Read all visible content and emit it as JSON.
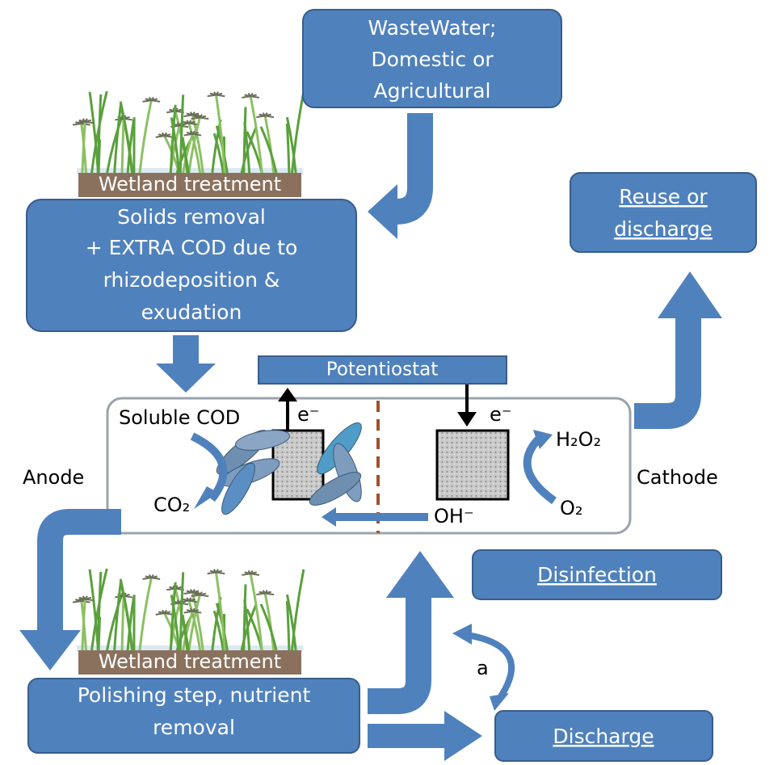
{
  "source": {
    "lines": [
      "WasteWater;",
      "Domestic or",
      "Agricultural"
    ]
  },
  "wetland_top": {
    "label": "Wetland treatment"
  },
  "solids": {
    "lines": [
      "Solids removal",
      "+ EXTRA COD due to",
      "rhizodeposition &",
      "exudation"
    ]
  },
  "reuse": {
    "lines": [
      "Reuse or",
      "discharge"
    ]
  },
  "potentiostat": {
    "label": "Potentiostat"
  },
  "cell": {
    "anode_label": "Anode",
    "cathode_label": "Cathode",
    "soluble_cod": "Soluble COD",
    "co2": "CO₂",
    "electron_anode": "e⁻",
    "electron_cathode": "e⁻",
    "h2o2": "H₂O₂",
    "o2": "O₂",
    "oh": "OH⁻"
  },
  "disinfection": {
    "label": "Disinfection"
  },
  "option": {
    "label": "a"
  },
  "wetland_bottom": {
    "label": "Wetland treatment"
  },
  "polishing": {
    "lines": [
      "Polishing step, nutrient",
      "removal"
    ]
  },
  "discharge": {
    "label": "Discharge"
  }
}
